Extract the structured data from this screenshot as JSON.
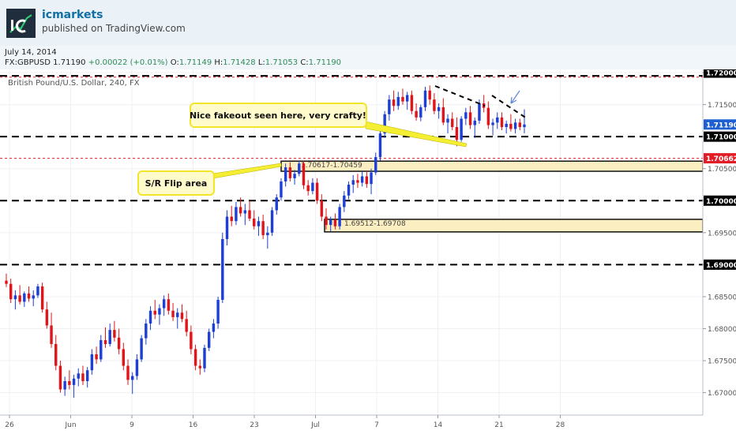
{
  "header": {
    "author": "icmarkets",
    "published": "published on TradingView.com",
    "date": "July 14, 2014"
  },
  "quote": {
    "symbol": "FX:GBPUSD",
    "last": "1.71190",
    "change": "+0.00022 (+0.01%)",
    "o_label": "O:",
    "o": "1.71149",
    "h_label": "H:",
    "h": "1.71428",
    "l_label": "L:",
    "l": "1.71053",
    "c_label": "C:",
    "c": "1.71190"
  },
  "chart_data": {
    "type": "candlestick",
    "title": "British Pound/U.S. Dollar, 240, FX",
    "x_ticks": [
      "26",
      "Jun",
      "9",
      "16",
      "23",
      "Jul",
      "7",
      "14",
      "21",
      "28"
    ],
    "y_ticks": [
      "1.72000",
      "1.71500",
      "1.71000",
      "1.70500",
      "1.70000",
      "1.69500",
      "1.69000",
      "1.68500",
      "1.68000",
      "1.67500",
      "1.67000"
    ],
    "ylim": [
      1.6665,
      1.7205
    ],
    "y_tick_step": 0.005,
    "price_labels": [
      {
        "text": "1.72000",
        "value": 1.72,
        "bg": "#000000",
        "fg": "#ffffff"
      },
      {
        "text": "1.71190",
        "value": 1.7119,
        "bg": "#1f5fd0",
        "fg": "#ffffff"
      },
      {
        "text": "1.71000",
        "value": 1.71,
        "bg": "#000000",
        "fg": "#ffffff"
      },
      {
        "text": "1.70662",
        "value": 1.70662,
        "bg": "#e21d25",
        "fg": "#ffffff"
      },
      {
        "text": "1.70000",
        "value": 1.7,
        "bg": "#000000",
        "fg": "#ffffff"
      },
      {
        "text": "1.69000",
        "value": 1.69,
        "bg": "#000000",
        "fg": "#ffffff"
      }
    ],
    "black_levels": [
      1.7195,
      1.71,
      1.7,
      1.69
    ],
    "red_levels": [
      1.7193,
      1.70662
    ],
    "zones": [
      {
        "label": "1.70617-1.70459",
        "high": 1.70617,
        "low": 1.70459
      },
      {
        "label": "1.69512-1.69708",
        "high": 1.69708,
        "low": 1.69512
      }
    ],
    "annotations": [
      "Nice fakeout seen here, very crafty!",
      "S/R Flip area"
    ],
    "candles": [
      {
        "o": 1.6875,
        "h": 1.6886,
        "l": 1.6865,
        "c": 1.687
      },
      {
        "o": 1.687,
        "h": 1.6878,
        "l": 1.684,
        "c": 1.6846
      },
      {
        "o": 1.6846,
        "h": 1.686,
        "l": 1.683,
        "c": 1.6852
      },
      {
        "o": 1.6852,
        "h": 1.6868,
        "l": 1.6838,
        "c": 1.6842
      },
      {
        "o": 1.6842,
        "h": 1.6858,
        "l": 1.6834,
        "c": 1.6855
      },
      {
        "o": 1.6855,
        "h": 1.6866,
        "l": 1.6842,
        "c": 1.6847
      },
      {
        "o": 1.6847,
        "h": 1.686,
        "l": 1.6835,
        "c": 1.6852
      },
      {
        "o": 1.6852,
        "h": 1.687,
        "l": 1.6848,
        "c": 1.6866
      },
      {
        "o": 1.6866,
        "h": 1.6872,
        "l": 1.6825,
        "c": 1.683
      },
      {
        "o": 1.683,
        "h": 1.6842,
        "l": 1.68,
        "c": 1.6805
      },
      {
        "o": 1.6805,
        "h": 1.6825,
        "l": 1.677,
        "c": 1.6776
      },
      {
        "o": 1.6776,
        "h": 1.679,
        "l": 1.6735,
        "c": 1.6742
      },
      {
        "o": 1.6742,
        "h": 1.675,
        "l": 1.67,
        "c": 1.6705
      },
      {
        "o": 1.6705,
        "h": 1.6725,
        "l": 1.6695,
        "c": 1.6718
      },
      {
        "o": 1.6718,
        "h": 1.6735,
        "l": 1.6705,
        "c": 1.6712
      },
      {
        "o": 1.6712,
        "h": 1.6728,
        "l": 1.6692,
        "c": 1.6722
      },
      {
        "o": 1.6722,
        "h": 1.6738,
        "l": 1.671,
        "c": 1.673
      },
      {
        "o": 1.673,
        "h": 1.6742,
        "l": 1.6712,
        "c": 1.6718
      },
      {
        "o": 1.6718,
        "h": 1.674,
        "l": 1.6708,
        "c": 1.6735
      },
      {
        "o": 1.6735,
        "h": 1.6768,
        "l": 1.6728,
        "c": 1.676
      },
      {
        "o": 1.676,
        "h": 1.6772,
        "l": 1.6745,
        "c": 1.6752
      },
      {
        "o": 1.6752,
        "h": 1.679,
        "l": 1.6748,
        "c": 1.6782
      },
      {
        "o": 1.6782,
        "h": 1.6802,
        "l": 1.677,
        "c": 1.6776
      },
      {
        "o": 1.6776,
        "h": 1.6808,
        "l": 1.6772,
        "c": 1.6798
      },
      {
        "o": 1.6798,
        "h": 1.6812,
        "l": 1.678,
        "c": 1.6786
      },
      {
        "o": 1.6786,
        "h": 1.68,
        "l": 1.676,
        "c": 1.6768
      },
      {
        "o": 1.6768,
        "h": 1.6778,
        "l": 1.6735,
        "c": 1.6742
      },
      {
        "o": 1.6742,
        "h": 1.6752,
        "l": 1.6712,
        "c": 1.672
      },
      {
        "o": 1.672,
        "h": 1.6732,
        "l": 1.6698,
        "c": 1.6726
      },
      {
        "o": 1.6726,
        "h": 1.676,
        "l": 1.672,
        "c": 1.6752
      },
      {
        "o": 1.6752,
        "h": 1.679,
        "l": 1.6748,
        "c": 1.6785
      },
      {
        "o": 1.6785,
        "h": 1.6815,
        "l": 1.6775,
        "c": 1.6808
      },
      {
        "o": 1.6808,
        "h": 1.6835,
        "l": 1.6798,
        "c": 1.6828
      },
      {
        "o": 1.6828,
        "h": 1.6845,
        "l": 1.6815,
        "c": 1.6822
      },
      {
        "o": 1.6822,
        "h": 1.6838,
        "l": 1.6806,
        "c": 1.6832
      },
      {
        "o": 1.6832,
        "h": 1.6852,
        "l": 1.682,
        "c": 1.6846
      },
      {
        "o": 1.6846,
        "h": 1.6855,
        "l": 1.6822,
        "c": 1.6828
      },
      {
        "o": 1.6828,
        "h": 1.684,
        "l": 1.6812,
        "c": 1.6818
      },
      {
        "o": 1.6818,
        "h": 1.6832,
        "l": 1.68,
        "c": 1.6825
      },
      {
        "o": 1.6825,
        "h": 1.6838,
        "l": 1.681,
        "c": 1.6815
      },
      {
        "o": 1.6815,
        "h": 1.6828,
        "l": 1.6788,
        "c": 1.6795
      },
      {
        "o": 1.6795,
        "h": 1.6805,
        "l": 1.676,
        "c": 1.6768
      },
      {
        "o": 1.6768,
        "h": 1.6775,
        "l": 1.6735,
        "c": 1.6742
      },
      {
        "o": 1.6742,
        "h": 1.6752,
        "l": 1.6728,
        "c": 1.6738
      },
      {
        "o": 1.6738,
        "h": 1.6775,
        "l": 1.6732,
        "c": 1.677
      },
      {
        "o": 1.677,
        "h": 1.68,
        "l": 1.6765,
        "c": 1.6795
      },
      {
        "o": 1.6795,
        "h": 1.6815,
        "l": 1.6785,
        "c": 1.6808
      },
      {
        "o": 1.6808,
        "h": 1.685,
        "l": 1.68,
        "c": 1.6845
      },
      {
        "o": 1.6845,
        "h": 1.695,
        "l": 1.684,
        "c": 1.694
      },
      {
        "o": 1.694,
        "h": 1.6985,
        "l": 1.693,
        "c": 1.6975
      },
      {
        "o": 1.6975,
        "h": 1.6992,
        "l": 1.696,
        "c": 1.6968
      },
      {
        "o": 1.6968,
        "h": 1.6998,
        "l": 1.6962,
        "c": 1.699
      },
      {
        "o": 1.699,
        "h": 1.7005,
        "l": 1.6975,
        "c": 1.698
      },
      {
        "o": 1.698,
        "h": 1.6995,
        "l": 1.6962,
        "c": 1.6985
      },
      {
        "o": 1.6985,
        "h": 1.7,
        "l": 1.6968,
        "c": 1.6972
      },
      {
        "o": 1.6972,
        "h": 1.6985,
        "l": 1.6955,
        "c": 1.696
      },
      {
        "o": 1.696,
        "h": 1.6975,
        "l": 1.6945,
        "c": 1.6968
      },
      {
        "o": 1.6968,
        "h": 1.6978,
        "l": 1.694,
        "c": 1.6946
      },
      {
        "o": 1.6946,
        "h": 1.696,
        "l": 1.6925,
        "c": 1.695
      },
      {
        "o": 1.695,
        "h": 1.699,
        "l": 1.6945,
        "c": 1.6985
      },
      {
        "o": 1.6985,
        "h": 1.701,
        "l": 1.6978,
        "c": 1.7005
      },
      {
        "o": 1.7005,
        "h": 1.7035,
        "l": 1.7,
        "c": 1.703
      },
      {
        "o": 1.703,
        "h": 1.7058,
        "l": 1.7022,
        "c": 1.7052
      },
      {
        "o": 1.7052,
        "h": 1.706,
        "l": 1.703,
        "c": 1.7035
      },
      {
        "o": 1.7035,
        "h": 1.7048,
        "l": 1.7025,
        "c": 1.7042
      },
      {
        "o": 1.7042,
        "h": 1.7062,
        "l": 1.7038,
        "c": 1.7058
      },
      {
        "o": 1.7058,
        "h": 1.7062,
        "l": 1.7018,
        "c": 1.7024
      },
      {
        "o": 1.7024,
        "h": 1.7032,
        "l": 1.7008,
        "c": 1.7015
      },
      {
        "o": 1.7015,
        "h": 1.7035,
        "l": 1.701,
        "c": 1.7028
      },
      {
        "o": 1.7028,
        "h": 1.7035,
        "l": 1.6995,
        "c": 1.7
      },
      {
        "o": 1.7,
        "h": 1.701,
        "l": 1.6968,
        "c": 1.6975
      },
      {
        "o": 1.6975,
        "h": 1.6988,
        "l": 1.6955,
        "c": 1.6962
      },
      {
        "o": 1.6962,
        "h": 1.6975,
        "l": 1.6952,
        "c": 1.697
      },
      {
        "o": 1.697,
        "h": 1.698,
        "l": 1.6955,
        "c": 1.696
      },
      {
        "o": 1.696,
        "h": 1.6995,
        "l": 1.6955,
        "c": 1.699
      },
      {
        "o": 1.699,
        "h": 1.7015,
        "l": 1.6982,
        "c": 1.7008
      },
      {
        "o": 1.7008,
        "h": 1.703,
        "l": 1.7002,
        "c": 1.7025
      },
      {
        "o": 1.7025,
        "h": 1.704,
        "l": 1.7012,
        "c": 1.7032
      },
      {
        "o": 1.7032,
        "h": 1.7042,
        "l": 1.702,
        "c": 1.7028
      },
      {
        "o": 1.7028,
        "h": 1.7045,
        "l": 1.7022,
        "c": 1.7038
      },
      {
        "o": 1.7038,
        "h": 1.7046,
        "l": 1.702,
        "c": 1.7026
      },
      {
        "o": 1.7026,
        "h": 1.705,
        "l": 1.701,
        "c": 1.7044
      },
      {
        "o": 1.7044,
        "h": 1.7075,
        "l": 1.704,
        "c": 1.7068
      },
      {
        "o": 1.7068,
        "h": 1.7112,
        "l": 1.7062,
        "c": 1.7105
      },
      {
        "o": 1.7105,
        "h": 1.714,
        "l": 1.7098,
        "c": 1.7135
      },
      {
        "o": 1.7135,
        "h": 1.7165,
        "l": 1.7125,
        "c": 1.7158
      },
      {
        "o": 1.7158,
        "h": 1.7172,
        "l": 1.714,
        "c": 1.7148
      },
      {
        "o": 1.7148,
        "h": 1.717,
        "l": 1.7142,
        "c": 1.7162
      },
      {
        "o": 1.7162,
        "h": 1.7175,
        "l": 1.715,
        "c": 1.7155
      },
      {
        "o": 1.7155,
        "h": 1.717,
        "l": 1.7142,
        "c": 1.7165
      },
      {
        "o": 1.7165,
        "h": 1.7172,
        "l": 1.7135,
        "c": 1.714
      },
      {
        "o": 1.714,
        "h": 1.7152,
        "l": 1.7125,
        "c": 1.713
      },
      {
        "o": 1.713,
        "h": 1.715,
        "l": 1.7124,
        "c": 1.7146
      },
      {
        "o": 1.7146,
        "h": 1.7178,
        "l": 1.714,
        "c": 1.7172
      },
      {
        "o": 1.7172,
        "h": 1.718,
        "l": 1.715,
        "c": 1.7158
      },
      {
        "o": 1.7158,
        "h": 1.7168,
        "l": 1.7135,
        "c": 1.714
      },
      {
        "o": 1.714,
        "h": 1.7152,
        "l": 1.7128,
        "c": 1.7146
      },
      {
        "o": 1.7146,
        "h": 1.716,
        "l": 1.7118,
        "c": 1.7122
      },
      {
        "o": 1.7122,
        "h": 1.7135,
        "l": 1.7105,
        "c": 1.7128
      },
      {
        "o": 1.7128,
        "h": 1.7138,
        "l": 1.711,
        "c": 1.7115
      },
      {
        "o": 1.7115,
        "h": 1.713,
        "l": 1.7085,
        "c": 1.7095
      },
      {
        "o": 1.7095,
        "h": 1.7132,
        "l": 1.7092,
        "c": 1.7128
      },
      {
        "o": 1.7128,
        "h": 1.7145,
        "l": 1.7118,
        "c": 1.7138
      },
      {
        "o": 1.7138,
        "h": 1.7148,
        "l": 1.7112,
        "c": 1.7118
      },
      {
        "o": 1.7118,
        "h": 1.713,
        "l": 1.7098,
        "c": 1.7125
      },
      {
        "o": 1.7125,
        "h": 1.7158,
        "l": 1.712,
        "c": 1.7152
      },
      {
        "o": 1.7152,
        "h": 1.7165,
        "l": 1.7138,
        "c": 1.7145
      },
      {
        "o": 1.7145,
        "h": 1.7155,
        "l": 1.7112,
        "c": 1.7118
      },
      {
        "o": 1.7118,
        "h": 1.7128,
        "l": 1.7102,
        "c": 1.7122
      },
      {
        "o": 1.7122,
        "h": 1.7138,
        "l": 1.7112,
        "c": 1.713
      },
      {
        "o": 1.713,
        "h": 1.7138,
        "l": 1.711,
        "c": 1.7115
      },
      {
        "o": 1.7115,
        "h": 1.7125,
        "l": 1.7105,
        "c": 1.712
      },
      {
        "o": 1.712,
        "h": 1.7135,
        "l": 1.7108,
        "c": 1.7112
      },
      {
        "o": 1.7112,
        "h": 1.7128,
        "l": 1.7105,
        "c": 1.7122
      },
      {
        "o": 1.7122,
        "h": 1.7128,
        "l": 1.711,
        "c": 1.7115
      },
      {
        "o": 1.71149,
        "h": 1.71428,
        "l": 1.71053,
        "c": 1.7119
      }
    ]
  }
}
